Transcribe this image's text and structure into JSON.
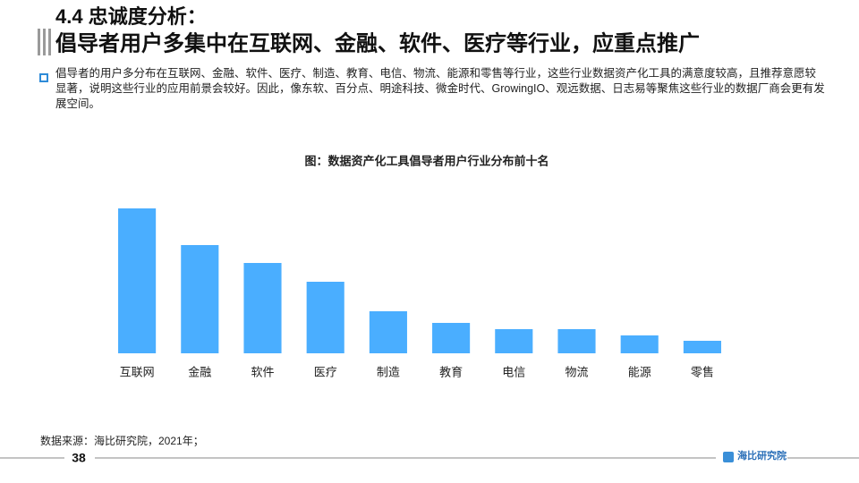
{
  "header": {
    "section": "4.4 忠诚度分析：",
    "title": "倡导者用户多集中在互联网、金融、软件、医疗等行业，应重点推广"
  },
  "paragraph": "倡导者的用户多分布在互联网、金融、软件、医疗、制造、教育、电信、物流、能源和零售等行业，这些行业数据资产化工具的满意度较高，且推荐意愿较显著，说明这些行业的应用前景会较好。因此，像东软、百分点、明途科技、微金时代、GrowingIO、观远数据、日志易等聚焦这些行业的数据厂商会更有发展空间。",
  "chart_data": {
    "type": "bar",
    "title": "图：数据资产化工具倡导者用户行业分布前十名",
    "categories": [
      "互联网",
      "金融",
      "软件",
      "医疗",
      "制造",
      "教育",
      "电信",
      "物流",
      "能源",
      "零售"
    ],
    "values": [
      162,
      121,
      101,
      80,
      47,
      34,
      27,
      27,
      20,
      14
    ],
    "color": "#4aaeff",
    "ylim": [
      0,
      180
    ]
  },
  "source": "数据来源：海比研究院，2021年；",
  "page_number": "38",
  "logo": "海比研究院"
}
